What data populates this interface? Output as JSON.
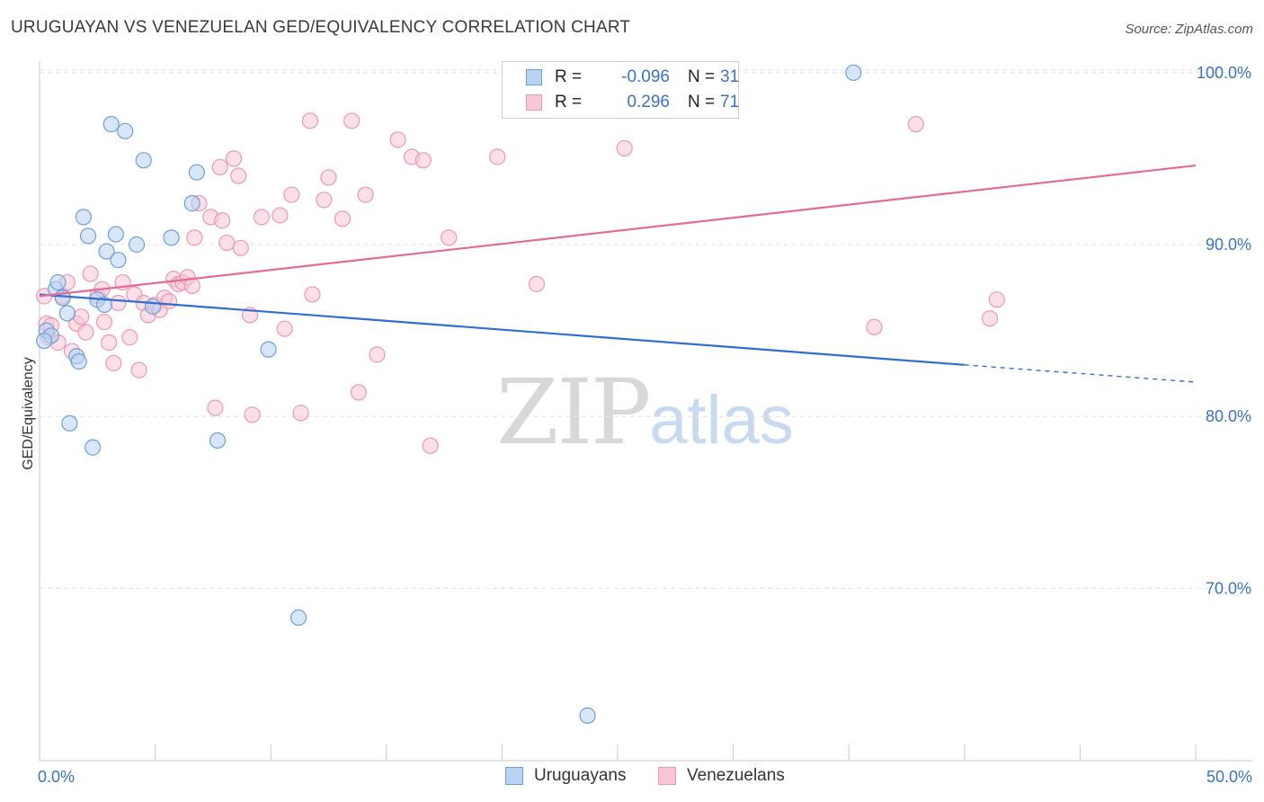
{
  "title": "URUGUAYAN VS VENEZUELAN GED/EQUIVALENCY CORRELATION CHART",
  "source": "Source: ZipAtlas.com",
  "watermark": {
    "zip": "ZIP",
    "atlas": "atlas"
  },
  "legend": {
    "r_label": "R =",
    "n_label": "N =",
    "series": [
      {
        "name": "Uruguayans",
        "r": "-0.096",
        "n": "31"
      },
      {
        "name": "Venezuelans",
        "r": "0.296",
        "n": "71"
      }
    ]
  },
  "colors": {
    "uru_fill": "#b8d2f2",
    "uru_stroke": "#6f9fd8",
    "uru_line": "#2f6fcf",
    "ven_fill": "#f8c6d6",
    "ven_stroke": "#ec98b4",
    "ven_line": "#e36b96",
    "tick_text": "#3b72c4",
    "grid": "#e2e2e2"
  },
  "chart_data": {
    "type": "scatter",
    "title": "URUGUAYAN VS VENEZUELAN GED/EQUIVALENCY CORRELATION CHART",
    "xlabel": "",
    "ylabel": "GED/Equivalency",
    "xlim": [
      0,
      50
    ],
    "ylim": [
      61,
      102
    ],
    "x_tick_labels": [
      {
        "value": 0,
        "label": "0.0%"
      },
      {
        "value": 50,
        "label": "50.0%"
      }
    ],
    "x_minor_ticks": [
      0,
      5,
      10,
      15,
      20,
      25,
      30,
      35,
      40,
      45,
      50
    ],
    "y_ticks": [
      {
        "value": 100,
        "label": "100.0%"
      },
      {
        "value": 90,
        "label": "90.0%"
      },
      {
        "value": 80,
        "label": "80.0%"
      },
      {
        "value": 70,
        "label": "70.0%"
      }
    ],
    "grid": true,
    "series": [
      {
        "name": "Uruguayans",
        "points": [
          [
            0.3,
            85.0
          ],
          [
            0.5,
            84.7
          ],
          [
            0.7,
            87.4
          ],
          [
            0.8,
            87.8
          ],
          [
            1.0,
            86.9
          ],
          [
            1.2,
            86.0
          ],
          [
            1.3,
            79.6
          ],
          [
            1.6,
            83.5
          ],
          [
            1.7,
            83.2
          ],
          [
            1.9,
            91.6
          ],
          [
            2.1,
            90.5
          ],
          [
            2.3,
            78.2
          ],
          [
            2.5,
            86.8
          ],
          [
            2.8,
            86.5
          ],
          [
            2.9,
            89.6
          ],
          [
            3.1,
            97.0
          ],
          [
            3.3,
            90.6
          ],
          [
            3.4,
            89.1
          ],
          [
            3.7,
            96.6
          ],
          [
            4.2,
            90.0
          ],
          [
            4.5,
            94.9
          ],
          [
            4.9,
            86.4
          ],
          [
            5.7,
            90.4
          ],
          [
            6.6,
            92.4
          ],
          [
            6.8,
            94.2
          ],
          [
            7.7,
            78.6
          ],
          [
            9.9,
            83.9
          ],
          [
            11.2,
            68.3
          ],
          [
            23.7,
            62.6
          ],
          [
            35.2,
            100.0
          ],
          [
            0.2,
            84.4
          ]
        ],
        "trend": {
          "x0": 0,
          "y0": 87.1,
          "x1": 40,
          "y1": 83.0,
          "dash_x1": 50,
          "dash_y1": 82.0
        }
      },
      {
        "name": "Venezuelans",
        "points": [
          [
            0.2,
            87.0
          ],
          [
            0.3,
            85.4
          ],
          [
            0.4,
            84.6
          ],
          [
            0.5,
            85.3
          ],
          [
            0.8,
            84.3
          ],
          [
            1.0,
            87.0
          ],
          [
            1.2,
            87.8
          ],
          [
            1.4,
            83.8
          ],
          [
            1.6,
            85.4
          ],
          [
            1.8,
            85.8
          ],
          [
            2.0,
            84.9
          ],
          [
            2.2,
            88.3
          ],
          [
            2.5,
            87.0
          ],
          [
            2.7,
            87.4
          ],
          [
            2.8,
            85.5
          ],
          [
            3.0,
            84.3
          ],
          [
            3.2,
            83.1
          ],
          [
            3.4,
            86.6
          ],
          [
            3.6,
            87.8
          ],
          [
            3.9,
            84.6
          ],
          [
            4.1,
            87.1
          ],
          [
            4.3,
            82.7
          ],
          [
            4.5,
            86.6
          ],
          [
            4.7,
            85.9
          ],
          [
            5.0,
            86.5
          ],
          [
            5.2,
            86.2
          ],
          [
            5.4,
            86.9
          ],
          [
            5.6,
            86.7
          ],
          [
            5.8,
            88.0
          ],
          [
            6.0,
            87.7
          ],
          [
            6.2,
            87.8
          ],
          [
            6.4,
            88.1
          ],
          [
            6.6,
            87.6
          ],
          [
            6.7,
            90.4
          ],
          [
            6.9,
            92.4
          ],
          [
            7.4,
            91.6
          ],
          [
            7.6,
            80.5
          ],
          [
            7.8,
            94.5
          ],
          [
            7.9,
            91.4
          ],
          [
            8.1,
            90.1
          ],
          [
            8.4,
            95.0
          ],
          [
            8.6,
            94.0
          ],
          [
            8.7,
            89.8
          ],
          [
            9.1,
            85.9
          ],
          [
            9.2,
            80.1
          ],
          [
            9.6,
            91.6
          ],
          [
            10.4,
            91.7
          ],
          [
            10.6,
            85.1
          ],
          [
            10.9,
            92.9
          ],
          [
            11.3,
            80.2
          ],
          [
            11.7,
            97.2
          ],
          [
            11.8,
            87.1
          ],
          [
            12.3,
            92.6
          ],
          [
            12.5,
            93.9
          ],
          [
            13.1,
            91.5
          ],
          [
            13.5,
            97.2
          ],
          [
            13.8,
            81.4
          ],
          [
            14.1,
            92.9
          ],
          [
            14.6,
            83.6
          ],
          [
            15.5,
            96.1
          ],
          [
            16.1,
            95.1
          ],
          [
            16.6,
            94.9
          ],
          [
            16.9,
            78.3
          ],
          [
            17.7,
            90.4
          ],
          [
            19.8,
            95.1
          ],
          [
            21.5,
            87.7
          ],
          [
            25.3,
            95.6
          ],
          [
            36.1,
            85.2
          ],
          [
            37.9,
            97.0
          ],
          [
            41.1,
            85.7
          ],
          [
            41.4,
            86.8
          ]
        ],
        "trend": {
          "x0": 0,
          "y0": 87.0,
          "x1": 50,
          "y1": 94.6
        }
      }
    ]
  }
}
